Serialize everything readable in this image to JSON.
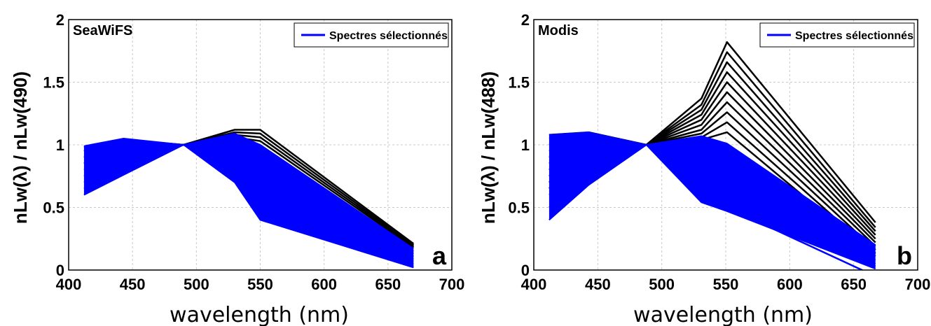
{
  "chart_data": [
    {
      "type": "line",
      "title": "SeaWiFS",
      "panel_letter": "a",
      "xlabel": "wavelength (nm)",
      "ylabel": "nLw(λ) / nLw(490)",
      "xlim": [
        400,
        700
      ],
      "ylim": [
        0,
        2
      ],
      "xticks": [
        400,
        450,
        500,
        550,
        600,
        650,
        700
      ],
      "yticks": [
        0,
        0.5,
        1,
        1.5,
        2
      ],
      "ytick_labels": [
        "0",
        "0.5",
        "1",
        "1.5",
        "2"
      ],
      "grid": true,
      "legend": {
        "position": "top-right",
        "entries": [
          "Spectres sélectionnés"
        ]
      },
      "colors": {
        "selected": "#0000ff",
        "all": "#000000"
      },
      "x": [
        412,
        443,
        490,
        530,
        550,
        670
      ],
      "series_all": [
        {
          "values": [
            0.98,
            1.04,
            1.0,
            1.12,
            1.12,
            0.21
          ]
        },
        {
          "values": [
            0.95,
            1.03,
            1.0,
            1.1,
            1.09,
            0.2
          ]
        },
        {
          "values": [
            0.9,
            1.02,
            1.0,
            1.08,
            1.06,
            0.19
          ]
        },
        {
          "values": [
            0.85,
            1.01,
            1.0,
            1.06,
            1.03,
            0.18
          ]
        }
      ],
      "series_selected": [
        {
          "values": [
            0.99,
            1.05,
            1.0,
            1.09,
            1.0,
            0.17
          ]
        },
        {
          "values": [
            0.95,
            1.04,
            1.0,
            1.05,
            0.93,
            0.15
          ]
        },
        {
          "values": [
            0.9,
            1.02,
            1.0,
            1.0,
            0.85,
            0.13
          ]
        },
        {
          "values": [
            0.85,
            1.0,
            1.0,
            0.95,
            0.75,
            0.11
          ]
        },
        {
          "values": [
            0.8,
            0.97,
            1.0,
            0.9,
            0.66,
            0.09
          ]
        },
        {
          "values": [
            0.75,
            0.93,
            1.0,
            0.85,
            0.58,
            0.07
          ]
        },
        {
          "values": [
            0.7,
            0.89,
            1.0,
            0.8,
            0.5,
            0.05
          ]
        },
        {
          "values": [
            0.65,
            0.84,
            1.0,
            0.75,
            0.44,
            0.03
          ]
        },
        {
          "values": [
            0.6,
            0.76,
            1.0,
            0.7,
            0.4,
            0.02
          ]
        }
      ]
    },
    {
      "type": "line",
      "title": "Modis",
      "panel_letter": "b",
      "xlabel": "wavelength (nm)",
      "ylabel": "nLw(λ) / nLw(488)",
      "xlim": [
        400,
        700
      ],
      "ylim": [
        0,
        2
      ],
      "xticks": [
        400,
        450,
        500,
        550,
        600,
        650,
        700
      ],
      "yticks": [
        0,
        0.5,
        1,
        1.5,
        2
      ],
      "ytick_labels": [
        "0",
        "0.5",
        "1",
        "1.5",
        "2"
      ],
      "grid": true,
      "legend": {
        "position": "top-right",
        "entries": [
          "Spectres sélectionnés"
        ]
      },
      "colors": {
        "selected": "#0000ff",
        "all": "#000000"
      },
      "x": [
        412,
        443,
        488,
        531,
        551,
        667
      ],
      "series_all": [
        {
          "values": [
            1.08,
            1.1,
            1.0,
            1.37,
            1.82,
            0.38
          ]
        },
        {
          "values": [
            1.05,
            1.08,
            1.0,
            1.32,
            1.74,
            0.34
          ]
        },
        {
          "values": [
            1.0,
            1.06,
            1.0,
            1.28,
            1.66,
            0.31
          ]
        },
        {
          "values": [
            0.95,
            1.04,
            1.0,
            1.24,
            1.58,
            0.28
          ]
        },
        {
          "values": [
            0.9,
            1.02,
            1.0,
            1.2,
            1.5,
            0.25
          ]
        },
        {
          "values": [
            0.85,
            1.0,
            1.0,
            1.16,
            1.42,
            0.22
          ]
        },
        {
          "values": [
            0.8,
            0.98,
            1.0,
            1.12,
            1.34,
            0.19
          ]
        },
        {
          "values": [
            0.75,
            0.96,
            1.0,
            1.09,
            1.26,
            0.16
          ]
        },
        {
          "values": [
            0.7,
            0.94,
            1.0,
            1.06,
            1.18,
            0.13
          ]
        },
        {
          "values": [
            0.65,
            0.92,
            1.0,
            1.04,
            1.1,
            0.11
          ]
        }
      ],
      "series_selected": [
        {
          "values": [
            1.08,
            1.1,
            1.0,
            1.07,
            1.01,
            0.2
          ]
        },
        {
          "values": [
            1.0,
            1.05,
            1.0,
            1.0,
            0.9,
            0.17
          ]
        },
        {
          "values": [
            0.9,
            1.0,
            1.0,
            0.93,
            0.8,
            0.14
          ]
        },
        {
          "values": [
            0.8,
            0.95,
            1.0,
            0.85,
            0.72,
            0.11
          ]
        },
        {
          "values": [
            0.7,
            0.9,
            1.0,
            0.78,
            0.65,
            0.08
          ]
        },
        {
          "values": [
            0.6,
            0.84,
            1.0,
            0.7,
            0.58,
            0.05
          ]
        },
        {
          "values": [
            0.5,
            0.76,
            1.0,
            0.62,
            0.52,
            0.03
          ]
        },
        {
          "values": [
            0.4,
            0.68,
            1.0,
            0.54,
            0.47,
            0.01
          ]
        }
      ],
      "series_outlier": {
        "values": [
          null,
          null,
          null,
          null,
          null,
          -0.05
        ]
      }
    }
  ]
}
